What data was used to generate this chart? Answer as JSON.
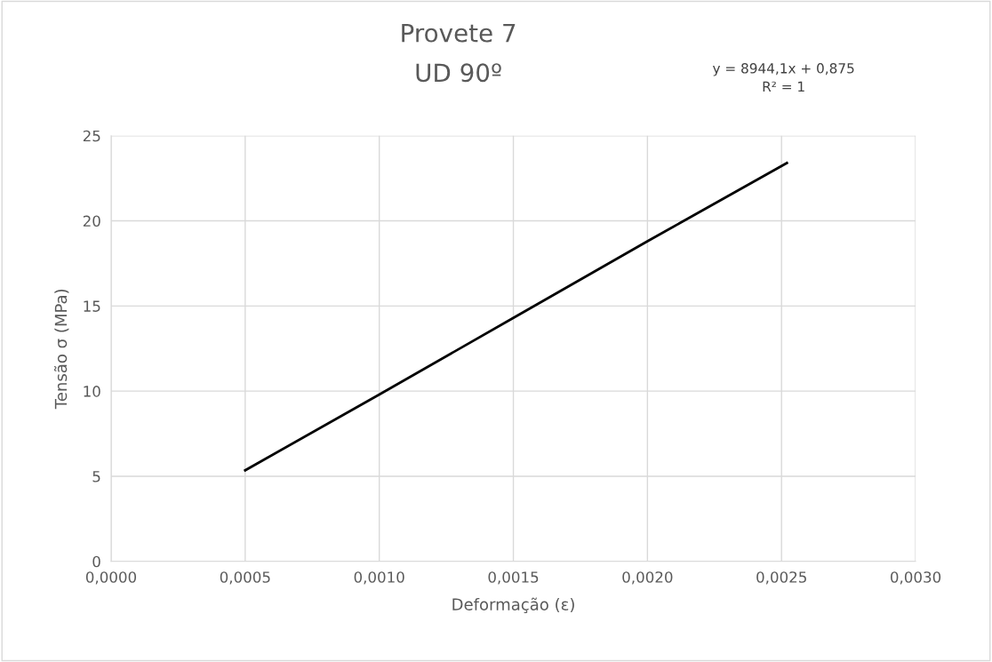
{
  "chart_data": {
    "type": "line",
    "title": "Provete 7",
    "subtitle": "UD 90º",
    "xlabel": "Deformação (ε)",
    "ylabel": "Tensão σ (MPa)",
    "annotations": [
      "y = 8944,1x + 0,875\nR² = 1"
    ],
    "x": [
      0.0005,
      0.001,
      0.0015,
      0.002,
      0.00252
    ],
    "series": [
      {
        "color": "#000000",
        "values": [
          5.35,
          9.8,
          14.3,
          18.8,
          23.4
        ]
      }
    ],
    "xlim": [
      0,
      0.003
    ],
    "xticks": [
      {
        "value": 0,
        "label": "0,0000"
      },
      {
        "value": 0.0005,
        "label": "0,0005"
      },
      {
        "value": 0.001,
        "label": "0,0010"
      },
      {
        "value": 0.0015,
        "label": "0,0015"
      },
      {
        "value": 0.002,
        "label": "0,0020"
      },
      {
        "value": 0.0025,
        "label": "0,0025"
      },
      {
        "value": 0.003,
        "label": "0,0030"
      }
    ],
    "ylim": [
      0,
      25
    ],
    "yticks": [
      0,
      5,
      10,
      15,
      20,
      25
    ],
    "grid": true,
    "marker": "none",
    "line_style": "solid"
  }
}
